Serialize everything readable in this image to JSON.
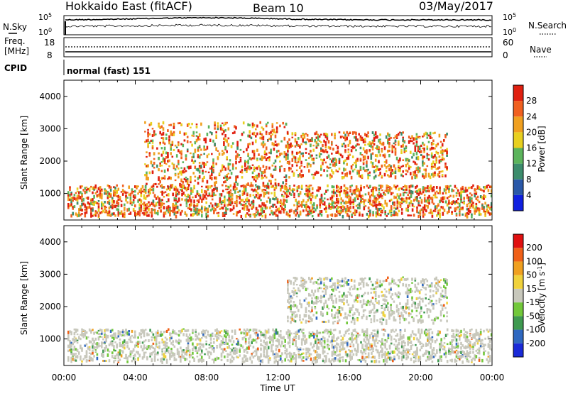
{
  "header": {
    "station": "Hokkaido East (fitACF)",
    "beam": "Beam 10",
    "date": "03/May/2017"
  },
  "noise_panel": {
    "left_label": "N.Sky",
    "right_label": "N.Search",
    "left_ticks": [
      "10^5",
      "10^0"
    ],
    "right_ticks": [
      "10^5",
      "10^0"
    ]
  },
  "freq_panel": {
    "left_label_line1": "Freq.",
    "left_label_line2": "[MHz]",
    "left_ticks": [
      "18",
      "8"
    ],
    "right_label": "Nave",
    "right_ticks": [
      "60",
      "0"
    ]
  },
  "cpid": {
    "label": "CPID",
    "value": "normal (fast) 151"
  },
  "x_axis": {
    "title": "Time UT",
    "ticks": [
      "00:00",
      "04:00",
      "08:00",
      "12:00",
      "16:00",
      "20:00",
      "00:00"
    ]
  },
  "chart_data": [
    {
      "type": "heatmap",
      "title": "",
      "xlabel": "Time UT",
      "ylabel": "Slant Range [km]",
      "x_range_hours": [
        0,
        24
      ],
      "ylim": [
        180,
        4500
      ],
      "y_ticks": [
        1000,
        2000,
        3000,
        4000
      ],
      "colorbar": {
        "label": "Power [dB]",
        "ticks": [
          "4",
          "8",
          "12",
          "16",
          "20",
          "24",
          "28"
        ],
        "colors": [
          "#1020e0",
          "#2a58a8",
          "#3c8c6c",
          "#5cb45c",
          "#e8d020",
          "#f0a020",
          "#f06020",
          "#e02010"
        ]
      },
      "echo_bands": [
        {
          "t_start": 0.2,
          "t_end": 24,
          "range_low": 300,
          "range_high": 1250,
          "level": "20-28 dB"
        },
        {
          "t_start": 12.5,
          "t_end": 21.5,
          "range_low": 1500,
          "range_high": 2900,
          "level": "24-28 dB"
        },
        {
          "t_start": 4.5,
          "t_end": 12.5,
          "range_low": 1200,
          "range_high": 3200,
          "level": "12-28 dB"
        }
      ]
    },
    {
      "type": "heatmap",
      "title": "",
      "xlabel": "Time UT",
      "ylabel": "Slant Range [km]",
      "x_range_hours": [
        0,
        24
      ],
      "ylim": [
        180,
        4500
      ],
      "y_ticks": [
        1000,
        2000,
        3000,
        4000
      ],
      "colorbar": {
        "label": "Velocity [m s^-1]",
        "ticks": [
          "200",
          "100",
          "50",
          "15",
          "-15",
          "-50",
          "-100",
          "-200"
        ],
        "colors": [
          "#1a2ad8",
          "#2f68c0",
          "#3f9a50",
          "#72c83a",
          "#c8c8bc",
          "#f0d23c",
          "#f0a020",
          "#f06018",
          "#e01010"
        ]
      },
      "echo_bands": [
        {
          "t_start": 0.2,
          "t_end": 24,
          "range_low": 300,
          "range_high": 1300,
          "level": "-15 to 15 m/s"
        },
        {
          "t_start": 12.5,
          "t_end": 21.5,
          "range_low": 1500,
          "range_high": 2900,
          "level": "-15 to 15 m/s"
        }
      ]
    }
  ]
}
